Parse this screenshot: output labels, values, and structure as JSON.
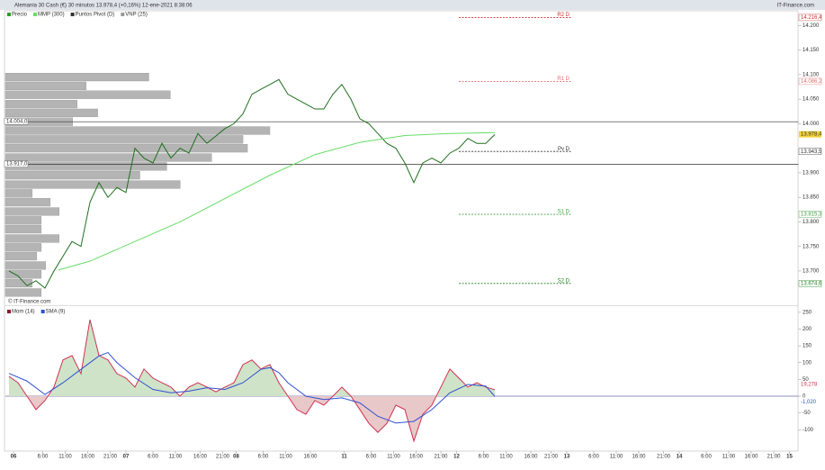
{
  "header": {
    "title": "Alemania 30 Cash (€) 30 minutos 13.978,4 (+0,16%) 12-ene-2021 8:38:06",
    "site": "IT-Finance.com",
    "watermark": "© IT-Finance.com"
  },
  "chart_data": [
    {
      "type": "line",
      "legend": [
        "Precio",
        "MMP (300)",
        "Puntos Pivot (D)",
        "VNP (25)"
      ],
      "legend_colors": [
        "#2a9d2a",
        "#66dd66",
        "#333333",
        "#999999"
      ],
      "xlim": [
        0,
        351
      ],
      "ylim": [
        13632,
        14230
      ],
      "yticks": [
        {
          "value": 14200,
          "label": "14.200"
        },
        {
          "value": 14150,
          "label": "14.150"
        },
        {
          "value": 14100,
          "label": "14.100"
        },
        {
          "value": 14050,
          "label": "14.050"
        },
        {
          "value": 14000,
          "label": "14.000"
        },
        {
          "value": 13900,
          "label": "13.900"
        },
        {
          "value": 13850,
          "label": "13.850"
        },
        {
          "value": 13800,
          "label": "13.800"
        },
        {
          "value": 13750,
          "label": "13.750"
        },
        {
          "value": 13700,
          "label": "13.700"
        }
      ],
      "series": [
        {
          "name": "Precio",
          "color": "#1f6f1f",
          "x": [
            0,
            4,
            8,
            12,
            16,
            20,
            24,
            28,
            32,
            36,
            40,
            44,
            48,
            52,
            56,
            60,
            64,
            68,
            72,
            76,
            80,
            84,
            88,
            92,
            96,
            100,
            104,
            108,
            112,
            116,
            120,
            124,
            128,
            132,
            136,
            140,
            144,
            148,
            152,
            156,
            160,
            164,
            168,
            172,
            176,
            180,
            184,
            188,
            192,
            196,
            200,
            204,
            208,
            212,
            216
          ],
          "values": [
            13700,
            13690,
            13670,
            13680,
            13665,
            13700,
            13730,
            13760,
            13750,
            13840,
            13880,
            13850,
            13870,
            13860,
            13950,
            13930,
            13920,
            13960,
            13930,
            13950,
            13940,
            13980,
            13960,
            13975,
            13990,
            14000,
            14020,
            14060,
            14070,
            14080,
            14090,
            14060,
            14050,
            14040,
            14030,
            14030,
            14060,
            14080,
            14050,
            14010,
            14000,
            13980,
            13960,
            13950,
            13920,
            13880,
            13920,
            13930,
            13920,
            13940,
            13950,
            13970,
            13960,
            13960,
            13978
          ]
        },
        {
          "name": "MMP (300)",
          "color": "#66dd66",
          "x": [
            22,
            36,
            76,
            116,
            136,
            156,
            176,
            196,
            216
          ],
          "values": [
            13702,
            13720,
            13800,
            13895,
            13937,
            13962,
            13976,
            13980,
            13982
          ]
        }
      ],
      "last": {
        "value": 13978.4,
        "label": "13.978,4"
      },
      "hlines": [
        {
          "value": 14004,
          "label": "14.004,0"
        },
        {
          "value": 13917,
          "label": "13.917,0"
        }
      ],
      "pivot_x": [
        200,
        250
      ],
      "pivots": [
        {
          "name": "R2 D",
          "value": 14216.4,
          "label": "14.216,4",
          "color": "#d03030"
        },
        {
          "name": "R1 D",
          "value": 14086.2,
          "label": "14.086,2",
          "color": "#e07070"
        },
        {
          "name": "Pv D",
          "value": 13943.5,
          "label": "13.943,5",
          "color": "#333333"
        },
        {
          "name": "S1 D",
          "value": 13815.3,
          "label": "13.815,3",
          "color": "#40a040"
        },
        {
          "name": "S2 D",
          "value": 13674.6,
          "label": "13.674,6",
          "color": "#208020"
        }
      ],
      "volume_profile": {
        "prices": [
          14095,
          14077,
          14059,
          14040,
          14022,
          14004,
          13986,
          13968,
          13950,
          13931,
          13913,
          13895,
          13876,
          13858,
          13840,
          13821,
          13803,
          13785,
          13766,
          13748,
          13730,
          13711,
          13693,
          13675,
          13656
        ],
        "values": [
          160,
          90,
          184,
          80,
          103,
          75,
          295,
          265,
          270,
          230,
          180,
          150,
          195,
          30,
          50,
          60,
          40,
          40,
          60,
          40,
          35,
          45,
          40,
          30,
          40
        ]
      }
    },
    {
      "type": "line",
      "legend": [
        "Mom (14)",
        "SMA (9)"
      ],
      "legend_colors": [
        "#8b1a2a",
        "#3050d0"
      ],
      "xlim": [
        0,
        351
      ],
      "ylim": [
        -161,
        263
      ],
      "yticks": [
        250,
        200,
        150,
        100,
        50,
        0,
        -50,
        -100
      ],
      "xticks": [
        {
          "value": 2,
          "label": "06"
        },
        {
          "value": 15,
          "label": "6:00"
        },
        {
          "value": 25,
          "label": "11:00"
        },
        {
          "value": 35,
          "label": "16:00"
        },
        {
          "value": 45,
          "label": "21:00"
        },
        {
          "value": 52,
          "label": "07"
        },
        {
          "value": 64,
          "label": "6:00"
        },
        {
          "value": 74,
          "label": "11:00"
        },
        {
          "value": 85,
          "label": "16:00"
        },
        {
          "value": 95,
          "label": "21:00"
        },
        {
          "value": 101,
          "label": "08"
        },
        {
          "value": 113,
          "label": "6:00"
        },
        {
          "value": 123,
          "label": "11:00"
        },
        {
          "value": 134,
          "label": "16:00"
        },
        {
          "value": 149,
          "label": "11"
        },
        {
          "value": 161,
          "label": "6:00"
        },
        {
          "value": 171,
          "label": "11:00"
        },
        {
          "value": 181,
          "label": "16:00"
        },
        {
          "value": 192,
          "label": "21:00"
        },
        {
          "value": 199,
          "label": "12"
        },
        {
          "value": 211,
          "label": "6:00"
        },
        {
          "value": 221,
          "label": "11:00"
        },
        {
          "value": 232,
          "label": "16:00"
        },
        {
          "value": 241,
          "label": "21:00"
        },
        {
          "value": 248,
          "label": "13"
        },
        {
          "value": 260,
          "label": "6:00"
        },
        {
          "value": 270,
          "label": "11:00"
        },
        {
          "value": 280,
          "label": "16:00"
        },
        {
          "value": 291,
          "label": "21:00"
        },
        {
          "value": 298,
          "label": "14"
        },
        {
          "value": 310,
          "label": "6:00"
        },
        {
          "value": 320,
          "label": "11:00"
        },
        {
          "value": 330,
          "label": "16:00"
        },
        {
          "value": 340,
          "label": "21:00"
        },
        {
          "value": 347,
          "label": "15"
        }
      ],
      "series": [
        {
          "name": "Mom (14)",
          "color": "#d03050",
          "x": [
            0,
            4,
            8,
            12,
            16,
            20,
            24,
            28,
            32,
            36,
            40,
            44,
            48,
            52,
            56,
            60,
            64,
            68,
            72,
            76,
            80,
            84,
            88,
            92,
            96,
            100,
            104,
            108,
            112,
            116,
            120,
            124,
            128,
            132,
            136,
            140,
            144,
            148,
            152,
            156,
            160,
            164,
            168,
            172,
            176,
            180,
            184,
            188,
            192,
            196,
            200,
            204,
            208,
            212,
            216
          ],
          "values": [
            59,
            40,
            0,
            -40,
            -13,
            27,
            108,
            121,
            67,
            228,
            121,
            108,
            67,
            54,
            27,
            81,
            54,
            40,
            27,
            0,
            27,
            40,
            27,
            13,
            27,
            40,
            94,
            108,
            81,
            94,
            40,
            0,
            -40,
            -54,
            -13,
            -27,
            0,
            27,
            0,
            -40,
            -81,
            -108,
            -81,
            -27,
            -40,
            -134,
            -54,
            -27,
            27,
            81,
            54,
            27,
            40,
            27,
            19.278
          ],
          "last_label": "19,278"
        },
        {
          "name": "SMA (9)",
          "color": "#3050d0",
          "x": [
            0,
            8,
            16,
            24,
            32,
            40,
            44,
            48,
            56,
            64,
            72,
            80,
            88,
            96,
            104,
            112,
            116,
            120,
            124,
            132,
            140,
            148,
            156,
            164,
            172,
            180,
            188,
            196,
            204,
            212,
            216
          ],
          "values": [
            68,
            45,
            5,
            40,
            80,
            120,
            130,
            100,
            55,
            20,
            10,
            15,
            25,
            20,
            40,
            80,
            85,
            70,
            40,
            0,
            -10,
            -5,
            -20,
            -60,
            -80,
            -75,
            -40,
            10,
            35,
            30,
            -1.02
          ],
          "last_label": "-1,020"
        }
      ]
    }
  ]
}
